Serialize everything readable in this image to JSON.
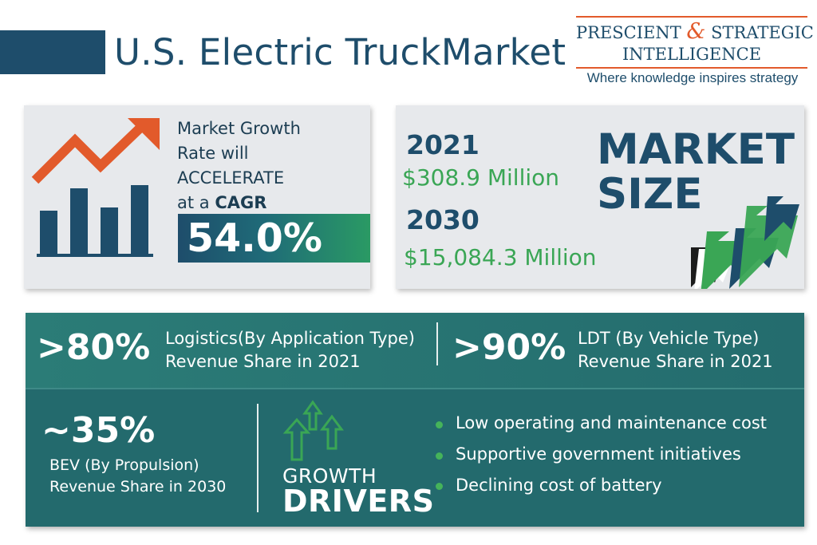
{
  "header": {
    "title": "U.S. Electric TruckMarket",
    "logo": {
      "line1_left": "PRESCIENT",
      "line1_amp": "&",
      "line1_right": "STRATEGIC",
      "line2": "INTELLIGENCE",
      "tagline": "Where knowledge inspires strategy"
    }
  },
  "growth": {
    "line1": "Market Growth",
    "line2": "Rate will",
    "line3": "ACCELERATE",
    "line4_prefix": "at a ",
    "line4_bold": "CAGR",
    "cagr": "54.0%"
  },
  "market_size": {
    "heading_line1": "MARKET",
    "heading_line2": "SIZE",
    "year1": "2021",
    "value1": "$308.9 Million",
    "year2": "2030",
    "value2": "$15,084.3 Million"
  },
  "stats": {
    "logistics": {
      "pct": ">80%",
      "line1": "Logistics(By Application Type)",
      "line2": "Revenue Share in 2021"
    },
    "ldt": {
      "pct": ">90%",
      "line1": "LDT (By Vehicle Type)",
      "line2": "Revenue Share in 2021"
    },
    "bev": {
      "pct": "~35%",
      "line1": "BEV (By Propulsion)",
      "line2": "Revenue Share in 2030"
    }
  },
  "drivers": {
    "label_top": "GROWTH",
    "label_bottom": "DRIVERS",
    "items": [
      "Low operating and maintenance cost",
      "Supportive government initiatives",
      "Declining cost of battery"
    ]
  },
  "colors": {
    "navy": "#1e4d6b",
    "teal": "#236a6d",
    "green": "#3aa655",
    "orange": "#e25a2b",
    "panel_gray": "#e7e9ec"
  },
  "icons": [
    "bar-chart-up-icon",
    "market-arrows-icon",
    "growth-arrows-icon"
  ]
}
